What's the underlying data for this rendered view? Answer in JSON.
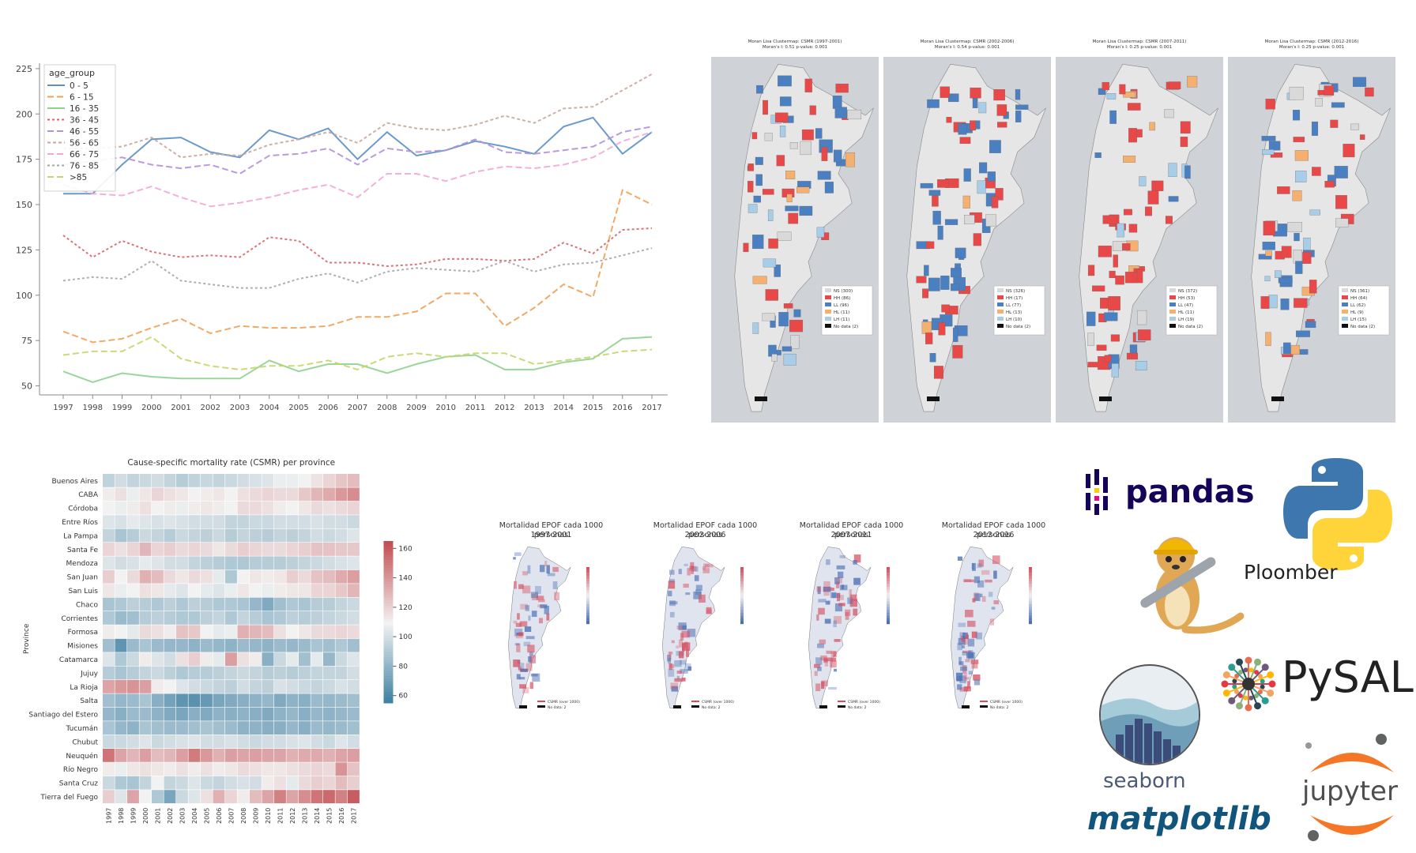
{
  "line_chart": {
    "legend_title": "age_group",
    "colors": [
      "#5b8fc7",
      "#f0a055",
      "#8fd18f",
      "#d9646a",
      "#b38fdc",
      "#c9a79c",
      "#f1a7d8",
      "#a6a6a6",
      "#c9d46a"
    ],
    "chart_data": {
      "type": "line",
      "x": [
        1997,
        1998,
        1999,
        2000,
        2001,
        2002,
        2003,
        2004,
        2005,
        2006,
        2007,
        2008,
        2009,
        2010,
        2011,
        2012,
        2013,
        2014,
        2015,
        2016,
        2017
      ],
      "ylim": [
        45,
        228
      ],
      "yticks": [
        50,
        75,
        100,
        125,
        150,
        175,
        200,
        225
      ],
      "series": [
        {
          "name": "0 - 5",
          "values": [
            156,
            156,
            172,
            186,
            187,
            179,
            176,
            191,
            186,
            192,
            175,
            190,
            177,
            180,
            185,
            182,
            178,
            193,
            198,
            178,
            190
          ]
        },
        {
          "name": "6 - 15",
          "values": [
            80,
            74,
            76,
            82,
            87,
            79,
            83,
            82,
            82,
            83,
            88,
            88,
            91,
            101,
            101,
            83,
            93,
            106,
            99,
            158,
            150
          ]
        },
        {
          "name": "16 - 35",
          "values": [
            58,
            52,
            57,
            55,
            54,
            54,
            54,
            64,
            58,
            62,
            62,
            57,
            62,
            66,
            67,
            59,
            59,
            63,
            65,
            76,
            77
          ]
        },
        {
          "name": "36 - 45",
          "values": [
            133,
            121,
            130,
            124,
            121,
            122,
            121,
            132,
            130,
            118,
            118,
            116,
            117,
            120,
            120,
            119,
            120,
            129,
            123,
            136,
            137
          ]
        },
        {
          "name": "46 - 55",
          "values": [
            172,
            174,
            176,
            172,
            170,
            172,
            167,
            177,
            178,
            181,
            172,
            181,
            179,
            180,
            186,
            179,
            178,
            180,
            182,
            190,
            193
          ]
        },
        {
          "name": "56 - 65",
          "values": [
            181,
            181,
            182,
            187,
            176,
            178,
            177,
            183,
            186,
            190,
            184,
            195,
            192,
            191,
            194,
            199,
            195,
            203,
            204,
            213,
            222
          ]
        },
        {
          "name": "66 - 75",
          "values": [
            161,
            156,
            155,
            160,
            154,
            149,
            151,
            154,
            158,
            161,
            154,
            167,
            167,
            163,
            168,
            171,
            170,
            172,
            176,
            185,
            190
          ]
        },
        {
          "name": "76 - 85",
          "values": [
            108,
            110,
            109,
            119,
            108,
            106,
            104,
            104,
            109,
            112,
            107,
            113,
            115,
            114,
            113,
            119,
            113,
            117,
            118,
            122,
            126
          ]
        },
        {
          "name": ">85",
          "values": [
            67,
            69,
            69,
            77,
            65,
            61,
            59,
            61,
            61,
            64,
            59,
            66,
            68,
            66,
            68,
            68,
            62,
            64,
            66,
            69,
            70
          ]
        }
      ]
    }
  },
  "moran_maps": [
    {
      "title": "Moran Lisa Clustermap: CSMR (1997-2001)",
      "subtitle": "Moran's I: 0.51 p-value: 0.001",
      "legend": [
        "NS (300)",
        "HH (86)",
        "LL (96)",
        "HL (11)",
        "LH (11)",
        "No data (2)"
      ]
    },
    {
      "title": "Moran Lisa Clustermap: CSMR (2002-2006)",
      "subtitle": "Moran's I: 0.54 p-value: 0.001",
      "legend": [
        "NS (326)",
        "HH (17)",
        "LL (77)",
        "HL (13)",
        "LH (10)",
        "No data (2)"
      ]
    },
    {
      "title": "Moran Lisa Clustermap: CSMR (2007-2011)",
      "subtitle": "Moran's I: 0.25 p-value: 0.001",
      "legend": [
        "NS (372)",
        "HH (53)",
        "LL (47)",
        "HL (11)",
        "LH (19)",
        "No data (2)"
      ]
    },
    {
      "title": "Moran Lisa Clustermap: CSMR (2012-2016)",
      "subtitle": "Moran's I: 0.25 p-value: 0.001",
      "legend": [
        "NS (361)",
        "HH (64)",
        "LL (62)",
        "HL (9)",
        "LH (15)",
        "No data (2)"
      ]
    }
  ],
  "moran_colors": {
    "NS": "#d9d9d9",
    "HH": "#e84848",
    "LL": "#4a7fc1",
    "HL": "#f5b070",
    "LH": "#a8cde8",
    "nodata": "#111111"
  },
  "heatmap": {
    "chart_data": {
      "type": "heatmap",
      "title": "Cause-specific mortality rate (CSMR) per province",
      "xlabel": "Year",
      "ylabel": "Province",
      "x": [
        "1997",
        "1998",
        "1999",
        "2000",
        "2001",
        "2002",
        "2003",
        "2004",
        "2005",
        "2006",
        "2007",
        "2008",
        "2009",
        "2010",
        "2011",
        "2012",
        "2013",
        "2014",
        "2015",
        "2016",
        "2017"
      ],
      "y": [
        "Buenos Aires",
        "CABA",
        "Córdoba",
        "Entre Ríos",
        "La Pampa",
        "Santa Fe",
        "Mendoza",
        "San Juan",
        "San Luis",
        "Chaco",
        "Corrientes",
        "Formosa",
        "Misiones",
        "Catamarca",
        "Jujuy",
        "La Rioja",
        "Salta",
        "Santiago del Estero",
        "Tucumán",
        "Chubut",
        "Neuquén",
        "Río Negro",
        "Santa Cruz",
        "Tierra del Fuego"
      ],
      "zlim": [
        55,
        165
      ],
      "colorbar_ticks": [
        60,
        80,
        100,
        120,
        140,
        160
      ],
      "values": [
        [
          95,
          100,
          96,
          98,
          100,
          96,
          92,
          95,
          97,
          96,
          98,
          100,
          102,
          104,
          108,
          108,
          110,
          115,
          120,
          125,
          128
        ],
        [
          112,
          116,
          108,
          114,
          120,
          116,
          114,
          110,
          112,
          114,
          110,
          116,
          118,
          120,
          118,
          118,
          124,
          130,
          134,
          140,
          144
        ],
        [
          110,
          108,
          112,
          116,
          110,
          112,
          108,
          112,
          114,
          112,
          110,
          118,
          118,
          116,
          112,
          110,
          114,
          118,
          116,
          118,
          120
        ],
        [
          104,
          102,
          106,
          104,
          102,
          104,
          102,
          100,
          100,
          100,
          96,
          96,
          98,
          98,
          100,
          100,
          100,
          102,
          100,
          100,
          98
        ],
        [
          96,
          88,
          92,
          98,
          96,
          92,
          98,
          96,
          94,
          98,
          92,
          96,
          94,
          92,
          96,
          94,
          96,
          100,
          98,
          100,
          104
        ],
        [
          120,
          116,
          120,
          130,
          120,
          122,
          118,
          120,
          118,
          114,
          118,
          122,
          120,
          118,
          118,
          120,
          122,
          126,
          126,
          124,
          124
        ],
        [
          104,
          100,
          102,
          106,
          104,
          100,
          100,
          96,
          94,
          92,
          90,
          90,
          92,
          92,
          92,
          94,
          96,
          98,
          100,
          102,
          104
        ],
        [
          122,
          110,
          118,
          132,
          128,
          118,
          114,
          118,
          116,
          106,
          90,
          110,
          114,
          112,
          114,
          122,
          118,
          126,
          128,
          134,
          138
        ],
        [
          114,
          108,
          110,
          116,
          114,
          106,
          104,
          110,
          106,
          104,
          108,
          114,
          110,
          108,
          112,
          114,
          114,
          120,
          120,
          124,
          130
        ],
        [
          88,
          90,
          94,
          92,
          90,
          94,
          90,
          94,
          92,
          90,
          90,
          88,
          82,
          76,
          86,
          90,
          88,
          92,
          92,
          96,
          98
        ],
        [
          90,
          84,
          86,
          92,
          94,
          92,
          90,
          90,
          94,
          96,
          90,
          96,
          92,
          88,
          90,
          94,
          92,
          94,
          96,
          98,
          100
        ],
        [
          112,
          110,
          106,
          118,
          116,
          112,
          126,
          124,
          110,
          106,
          108,
          132,
          130,
          128,
          116,
          110,
          114,
          118,
          118,
          120,
          118
        ],
        [
          86,
          66,
          84,
          88,
          84,
          82,
          82,
          80,
          84,
          82,
          80,
          84,
          82,
          80,
          84,
          82,
          84,
          88,
          86,
          90,
          86
        ],
        [
          104,
          90,
          98,
          112,
          104,
          100,
          116,
          122,
          112,
          106,
          138,
          116,
          112,
          78,
          98,
          106,
          86,
          106,
          82,
          98,
          104
        ],
        [
          92,
          88,
          92,
          96,
          98,
          94,
          90,
          92,
          92,
          94,
          96,
          98,
          96,
          92,
          94,
          92,
          94,
          96,
          96,
          96,
          100
        ],
        [
          136,
          140,
          142,
          138,
          112,
          110,
          104,
          100,
          98,
          96,
          94,
          100,
          96,
          94,
          102,
          100,
          98,
          96,
          98,
          102,
          100
        ],
        [
          86,
          82,
          84,
          88,
          78,
          72,
          66,
          64,
          68,
          74,
          76,
          78,
          80,
          82,
          76,
          80,
          78,
          84,
          82,
          84,
          86
        ],
        [
          82,
          78,
          84,
          84,
          80,
          76,
          74,
          78,
          76,
          80,
          78,
          80,
          78,
          76,
          80,
          82,
          78,
          82,
          80,
          82,
          84
        ],
        [
          88,
          82,
          80,
          88,
          86,
          84,
          84,
          86,
          88,
          86,
          84,
          80,
          80,
          78,
          78,
          82,
          78,
          84,
          82,
          84,
          86
        ],
        [
          98,
          98,
          100,
          104,
          98,
          100,
          102,
          104,
          100,
          100,
          102,
          100,
          98,
          100,
          100,
          102,
          104,
          100,
          98,
          104,
          100
        ],
        [
          152,
          136,
          130,
          138,
          128,
          130,
          138,
          150,
          140,
          132,
          138,
          136,
          138,
          136,
          136,
          132,
          134,
          134,
          132,
          136,
          138
        ],
        [
          112,
          108,
          114,
          116,
          114,
          112,
          116,
          112,
          116,
          112,
          114,
          118,
          116,
          114,
          114,
          116,
          118,
          120,
          118,
          142,
          126
        ],
        [
          98,
          90,
          88,
          96,
          110,
          96,
          98,
          104,
          98,
          96,
          100,
          102,
          100,
          112,
          116,
          106,
          118,
          122,
          120,
          128,
          122
        ],
        [
          122,
          104,
          136,
          110,
          90,
          74,
          98,
          104,
          116,
          132,
          120,
          112,
          128,
          136,
          148,
          136,
          144,
          152,
          156,
          148,
          160
        ]
      ]
    }
  },
  "epof_maps": [
    {
      "title1": "Mortalidad EPOF cada 1000 personas",
      "title2": "1997-2001",
      "legend": [
        "CSMR (over 1000)",
        "No data: 2"
      ]
    },
    {
      "title1": "Mortalidad EPOF cada 1000 personas",
      "title2": "2002-2006",
      "legend": [
        "CSMR (over 1000)",
        "No data: 2"
      ]
    },
    {
      "title1": "Mortalidad EPOF cada 1000 personas",
      "title2": "2007-2011",
      "legend": [
        "CSMR (over 1000)",
        "No data: 2"
      ]
    },
    {
      "title1": "Mortalidad EPOF cada 1000 personas",
      "title2": "2012-2016",
      "legend": [
        "CSMR (over 1000)",
        "No data: 2"
      ]
    }
  ],
  "logos": {
    "pandas": "pandas",
    "ploomber": "Ploomber",
    "pysal": "PySAL",
    "seaborn": "seaborn",
    "matplotlib": "matplotlib",
    "jupyter": "jupyter"
  }
}
